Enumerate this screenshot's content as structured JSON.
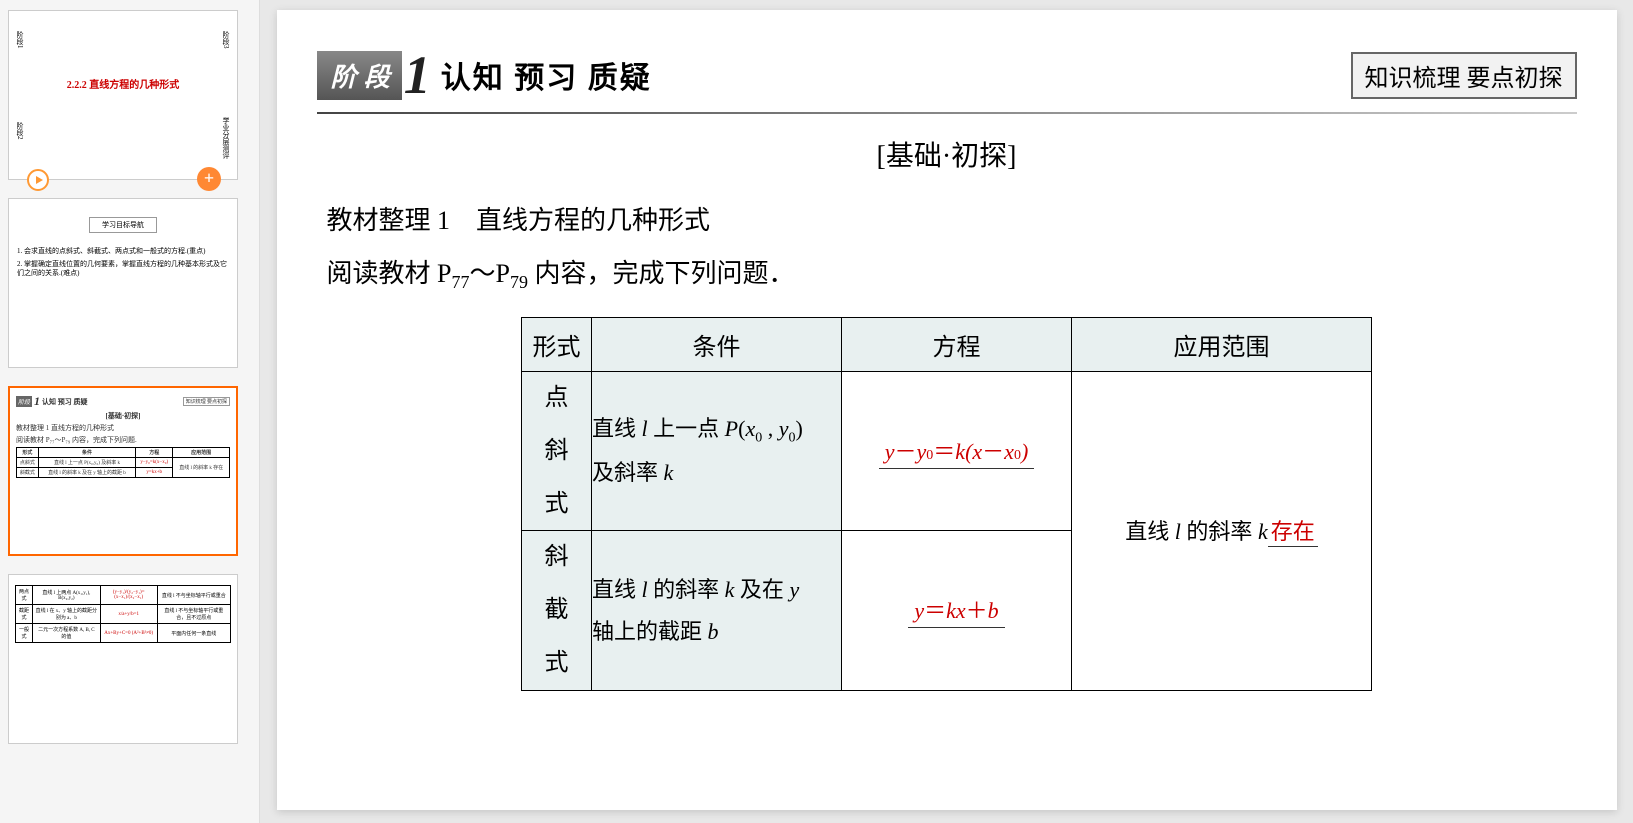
{
  "thumbnails": {
    "slide1": {
      "title": "2.2.2  直线方程的几种形式",
      "corner_tl": "阶段1",
      "corner_tr": "阶段3",
      "corner_bl": "阶段2",
      "corner_br": "学业分层测评"
    },
    "slide2": {
      "heading": "学习目标导航",
      "line1": "1. 会求直线的点斜式、斜截式、两点式和一般式的方程.(重点)",
      "line2": "2. 掌握确定直线位置的几何要素，掌握直线方程的几种基本形式及它们之间的关系.(难点)"
    },
    "slide3": {
      "badge": "阶段",
      "num": "1",
      "title": "认知 预习 质疑",
      "right": "知识梳理 要点初探",
      "sub": "[基础·初探]",
      "line1": "教材整理 1  直线方程的几种形式",
      "line2": "阅读教材 P₇₇～P₇₉ 内容，完成下列问题.",
      "headers": [
        "形式",
        "条件",
        "方程",
        "应用范围"
      ],
      "row1": [
        "点斜式",
        "直线 l 上一点 P(x₀,y₀) 及斜率 k",
        "y−y₀=k(x−x₀)",
        "直线 l 的斜率 k 存在"
      ],
      "row2": [
        "斜截式",
        "直线 l 的斜率 k 及在 y 轴上的截距 b",
        "y=kx+b",
        ""
      ]
    },
    "slide4": {
      "headers": [
        "两点式",
        "直线 l 上两点 A(x₁,y₁), B(x₂,y₂)",
        "(y−y₁)/(y₂−y₁)=(x−x₁)/(x₂−x₁)",
        "直线 l 不与坐标轴平行或重合"
      ],
      "row2": [
        "截距式",
        "直线 l 在 x、y 轴上的截距分别为 a、b",
        "x/a+y/b=1",
        "直线 l 不与坐标轴平行或重合，且不过原点"
      ],
      "row3": [
        "一般式",
        "二元一次方程系数 A, B, C 的值",
        "Ax+By+C=0 (A²+B²≠0)",
        "平面内任何一条直线"
      ]
    }
  },
  "main": {
    "badge": "阶 段",
    "num": "1",
    "title": "认知 预习 质疑",
    "right_box": "知识梳理 要点初探",
    "sub_head": "[基础·初探]",
    "section_title": "教材整理 1　直线方程的几种形式",
    "section_desc_pre": "阅读教材 P",
    "section_desc_p1": "77",
    "section_desc_mid": "～P",
    "section_desc_p2": "79",
    "section_desc_post": " 内容，完成下列问题．",
    "table": {
      "h_form": "形式",
      "h_cond": "条件",
      "h_eq": "方程",
      "h_range": "应用范围",
      "row1": {
        "form1": "点",
        "form2": "斜",
        "form3": "式",
        "cond_l1_pre": "直线 ",
        "cond_l1_post": " 上一点 ",
        "cond_l2_pre": "及斜率 "
      },
      "row2": {
        "form1": "斜",
        "form2": "截",
        "form3": "式",
        "cond_l1_pre": "直线 ",
        "cond_l1_mid": " 的斜率 ",
        "cond_l1_post": " 及在 ",
        "cond_l2_pre": "轴上的截距 "
      },
      "range_pre": "直线 ",
      "range_mid": " 的斜率 ",
      "range_red": "存在"
    },
    "colors": {
      "badge_bg": "#5a5a5a",
      "red": "#cc0000",
      "cell_bg": "#e8f0f0",
      "border": "#000000"
    }
  }
}
